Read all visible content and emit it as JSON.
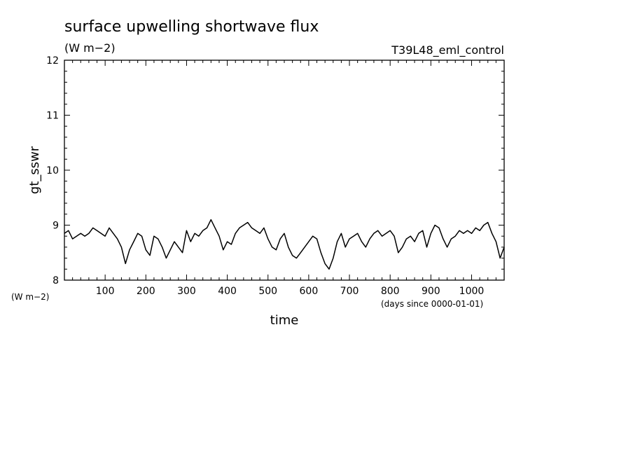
{
  "chart_data": {
    "type": "line",
    "title": "surface upwelling shortwave flux",
    "units": "(W m−2)",
    "experiment": "T39L48_eml_control",
    "ylabel": "gt_sswr",
    "yunits_label": "(W m−2)",
    "xlabel": "time",
    "xunits_label": "(days since 0000-01-01)",
    "xlim": [
      0,
      1080
    ],
    "ylim": [
      8,
      12
    ],
    "x_ticks": [
      100,
      200,
      300,
      400,
      500,
      600,
      700,
      800,
      900,
      1000
    ],
    "y_ticks": [
      8,
      9,
      10,
      11,
      12
    ],
    "grid": false,
    "series": [
      {
        "x": [
          0,
          10,
          20,
          30,
          40,
          50,
          60,
          70,
          80,
          90,
          100,
          110,
          120,
          130,
          140,
          150,
          160,
          170,
          180,
          190,
          200,
          210,
          220,
          230,
          240,
          250,
          260,
          270,
          280,
          290,
          300,
          310,
          320,
          330,
          340,
          350,
          360,
          370,
          380,
          390,
          400,
          410,
          420,
          430,
          440,
          450,
          460,
          470,
          480,
          490,
          500,
          510,
          520,
          530,
          540,
          550,
          560,
          570,
          580,
          590,
          600,
          610,
          620,
          630,
          640,
          650,
          660,
          670,
          680,
          690,
          700,
          710,
          720,
          730,
          740,
          750,
          760,
          770,
          780,
          790,
          800,
          810,
          820,
          830,
          840,
          850,
          860,
          870,
          880,
          890,
          900,
          910,
          920,
          930,
          940,
          950,
          960,
          970,
          980,
          990,
          1000,
          1010,
          1020,
          1030,
          1040,
          1050,
          1060,
          1070,
          1080
        ],
        "values": [
          8.85,
          8.9,
          8.75,
          8.8,
          8.85,
          8.8,
          8.85,
          8.95,
          8.9,
          8.85,
          8.8,
          8.95,
          8.85,
          8.75,
          8.6,
          8.3,
          8.55,
          8.7,
          8.85,
          8.8,
          8.55,
          8.45,
          8.8,
          8.75,
          8.6,
          8.4,
          8.55,
          8.7,
          8.6,
          8.5,
          8.9,
          8.7,
          8.85,
          8.8,
          8.9,
          8.95,
          9.1,
          8.95,
          8.8,
          8.55,
          8.7,
          8.65,
          8.85,
          8.95,
          9.0,
          9.05,
          8.95,
          8.9,
          8.85,
          8.95,
          8.75,
          8.6,
          8.55,
          8.75,
          8.85,
          8.6,
          8.45,
          8.4,
          8.5,
          8.6,
          8.7,
          8.8,
          8.75,
          8.5,
          8.3,
          8.2,
          8.4,
          8.7,
          8.85,
          8.6,
          8.75,
          8.8,
          8.85,
          8.7,
          8.6,
          8.75,
          8.85,
          8.9,
          8.8,
          8.85,
          8.9,
          8.8,
          8.5,
          8.6,
          8.75,
          8.8,
          8.7,
          8.85,
          8.9,
          8.6,
          8.85,
          9.0,
          8.95,
          8.75,
          8.6,
          8.75,
          8.8,
          8.9,
          8.85,
          8.9,
          8.85,
          8.95,
          8.9,
          9.0,
          9.05,
          8.85,
          8.7,
          8.4,
          8.6
        ]
      }
    ]
  }
}
